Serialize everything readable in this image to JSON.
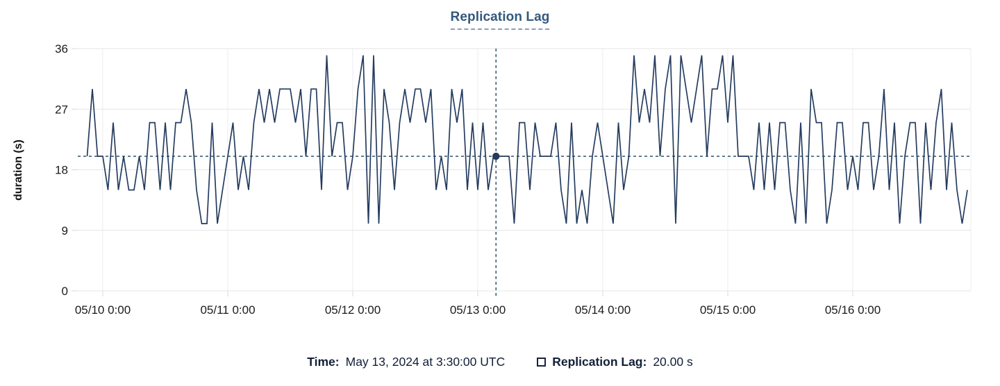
{
  "chart_data": {
    "type": "line",
    "title": "Replication Lag",
    "ylabel": "duration (s)",
    "xlabel": "",
    "grid": true,
    "ylim": [
      0,
      36
    ],
    "y_ticks": [
      0,
      9,
      18,
      27,
      36
    ],
    "x_tick_labels": [
      "05/10 0:00",
      "05/11 0:00",
      "05/12 0:00",
      "05/13 0:00",
      "05/14 0:00",
      "05/15 0:00",
      "05/16 0:00"
    ],
    "x_tick_indices": [
      3,
      27,
      51,
      75,
      99,
      123,
      147
    ],
    "x_start": "05/09 21:00",
    "x_interval_hours": 1,
    "series": [
      {
        "name": "Replication Lag",
        "unit": "s",
        "values": [
          20,
          30,
          20,
          20,
          15,
          25,
          15,
          20,
          15,
          15,
          20,
          15,
          25,
          25,
          15,
          25,
          15,
          25,
          25,
          30,
          25,
          15,
          10,
          10,
          25,
          10,
          15,
          20,
          25,
          15,
          20,
          15,
          25,
          30,
          25,
          30,
          25,
          30,
          30,
          30,
          25,
          30,
          20,
          30,
          30,
          15,
          35,
          20,
          25,
          25,
          15,
          20,
          30,
          35,
          10,
          35,
          10,
          30,
          25,
          15,
          25,
          30,
          25,
          30,
          30,
          25,
          30,
          15,
          20,
          15,
          30,
          25,
          30,
          15,
          25,
          15,
          25,
          15,
          20,
          20,
          20,
          20,
          10,
          25,
          25,
          15,
          25,
          20,
          20,
          20,
          25,
          15,
          10,
          25,
          10,
          15,
          10,
          20,
          25,
          20,
          15,
          10,
          25,
          15,
          20,
          35,
          25,
          30,
          25,
          35,
          20,
          30,
          35,
          10,
          35,
          30,
          25,
          30,
          35,
          20,
          30,
          30,
          35,
          25,
          35,
          20,
          20,
          20,
          15,
          25,
          15,
          25,
          15,
          25,
          25,
          15,
          10,
          25,
          10,
          30,
          25,
          25,
          10,
          15,
          25,
          25,
          15,
          20,
          15,
          25,
          25,
          15,
          20,
          30,
          15,
          25,
          10,
          20,
          25,
          25,
          10,
          25,
          15,
          25,
          30,
          15,
          25,
          15,
          10,
          15
        ]
      }
    ],
    "crosshair": {
      "x_index": 78.5,
      "value": 20,
      "time_label": "May 13, 2024 at 3:30:00 UTC",
      "value_label": "20.00 s"
    },
    "colors": {
      "line": "#253c5f",
      "crosshair": "#2b5469",
      "dot": "#24395b",
      "title": "#33587d",
      "grid_h": "#e6e6e6",
      "grid_v": "#ececec",
      "tick": "#d8d8d8",
      "axis_text": "#1b1b1b",
      "legend_text": "#121f38"
    },
    "legend_position": "bottom"
  },
  "tooltip": {
    "time_label": "Time:",
    "time_value": "May 13, 2024 at 3:30:00 UTC",
    "series_label": "Replication Lag:",
    "series_value": "20.00 s"
  }
}
